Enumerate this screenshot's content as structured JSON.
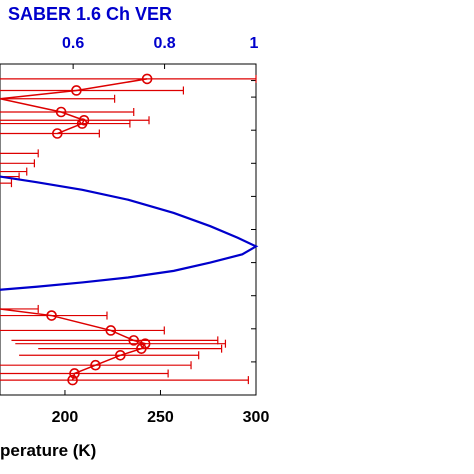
{
  "chart_data": {
    "type": "line",
    "top_axis": {
      "label": "SABER 1.6 Ch VER",
      "ticks": [
        "0.6",
        "0.8",
        "1"
      ],
      "range": [
        0.44,
        1.0
      ],
      "color": "#0000cc"
    },
    "bottom_axis": {
      "label": "perature (K)",
      "ticks": [
        "200",
        "250",
        "300"
      ],
      "range": [
        166,
        300
      ],
      "color": "#000000"
    },
    "y_axis": {
      "range": [
        0,
        1
      ],
      "tick_values": [
        0.1,
        0.2,
        0.3,
        0.4,
        0.5,
        0.6,
        0.7,
        0.8,
        0.9,
        0.95
      ]
    },
    "series": [
      {
        "type": "ver_profile",
        "color": "#0000cc",
        "points": [
          [
            0.44,
            0.66
          ],
          [
            0.52,
            0.643
          ],
          [
            0.62,
            0.62
          ],
          [
            0.72,
            0.59
          ],
          [
            0.82,
            0.55
          ],
          [
            0.9,
            0.51
          ],
          [
            0.96,
            0.475
          ],
          [
            1.0,
            0.449
          ],
          [
            0.97,
            0.425
          ],
          [
            0.9,
            0.4
          ],
          [
            0.82,
            0.375
          ],
          [
            0.72,
            0.355
          ],
          [
            0.62,
            0.34
          ],
          [
            0.52,
            0.327
          ],
          [
            0.44,
            0.318
          ]
        ]
      },
      {
        "type": "temperature_profile",
        "color": "#dd0000",
        "points": [
          {
            "t": 243,
            "y": 0.955,
            "lo": 166,
            "hi": 300
          },
          {
            "t": 206,
            "y": 0.92,
            "lo": 166,
            "hi": 262
          },
          {
            "t": 166,
            "y": 0.895,
            "lo": 166,
            "hi": 226
          },
          {
            "t": 198,
            "y": 0.855,
            "lo": 166,
            "hi": 236
          },
          {
            "t": 210,
            "y": 0.83,
            "lo": 166,
            "hi": 244
          },
          {
            "t": 209,
            "y": 0.82,
            "lo": 166,
            "hi": 234
          },
          {
            "t": 196,
            "y": 0.79,
            "lo": 166,
            "hi": 218
          },
          {
            "t": 166,
            "y": 0.73,
            "lo": 166,
            "hi": 186
          },
          {
            "t": 166,
            "y": 0.7,
            "lo": 166,
            "hi": 184
          },
          {
            "t": 166,
            "y": 0.675,
            "lo": 166,
            "hi": 180
          },
          {
            "t": 166,
            "y": 0.66,
            "lo": 166,
            "hi": 176
          },
          {
            "t": 166,
            "y": 0.64,
            "lo": 166,
            "hi": 172
          },
          {
            "t": 166,
            "y": 0.26,
            "lo": 166,
            "hi": 186
          },
          {
            "t": 193,
            "y": 0.24,
            "lo": 166,
            "hi": 222
          },
          {
            "t": 224,
            "y": 0.195,
            "lo": 166,
            "hi": 252
          },
          {
            "t": 236,
            "y": 0.165,
            "lo": 172,
            "hi": 280
          },
          {
            "t": 242,
            "y": 0.155,
            "lo": 174,
            "hi": 284
          },
          {
            "t": 240,
            "y": 0.14,
            "lo": 186,
            "hi": 282
          },
          {
            "t": 229,
            "y": 0.12,
            "lo": 176,
            "hi": 270
          },
          {
            "t": 216,
            "y": 0.09,
            "lo": 166,
            "hi": 266
          },
          {
            "t": 205,
            "y": 0.065,
            "lo": 166,
            "hi": 254
          },
          {
            "t": 204,
            "y": 0.045,
            "lo": 166,
            "hi": 296
          }
        ]
      }
    ],
    "colors": {
      "ver": "#0000cc",
      "temperature": "#dd0000",
      "axis": "#000000"
    },
    "grid": false
  }
}
